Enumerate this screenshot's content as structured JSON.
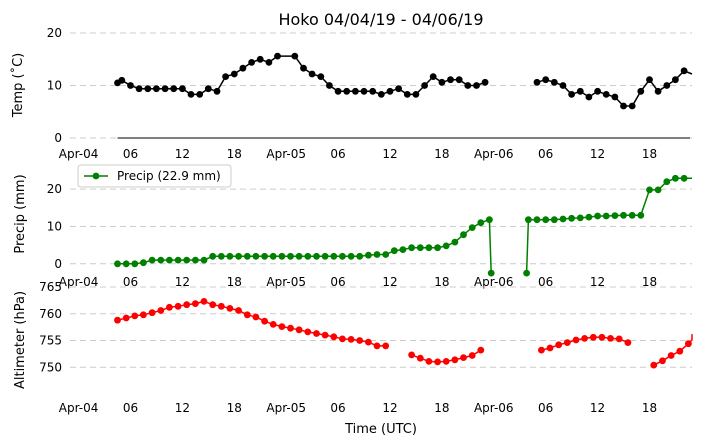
{
  "chart_data": {
    "type": "line",
    "title": "Hoko 04/04/19 - 04/06/19",
    "xlabel": "Time (UTC)",
    "x_ticks": [
      "Apr-04",
      "06",
      "12",
      "18",
      "Apr-05",
      "06",
      "12",
      "18",
      "Apr-06",
      "06",
      "12",
      "18"
    ],
    "panels": [
      {
        "name": "temp",
        "ylabel": "Temp (˚C)",
        "ylim": [
          0,
          20
        ],
        "yticks": [
          "0",
          "10",
          "20"
        ],
        "color": "#000000",
        "axis_line": true,
        "values": [
          [
            4.5,
            10.5
          ],
          [
            5,
            11
          ],
          [
            6,
            10
          ],
          [
            7,
            9.4
          ],
          [
            8,
            9.4
          ],
          [
            9,
            9.4
          ],
          [
            10,
            9.4
          ],
          [
            11,
            9.4
          ],
          [
            12,
            9.4
          ],
          [
            13,
            8.3
          ],
          [
            14,
            8.3
          ],
          [
            15,
            9.4
          ],
          [
            16,
            8.9
          ],
          [
            17,
            11.7
          ],
          [
            18,
            12.2
          ],
          [
            19,
            13.3
          ],
          [
            20,
            14.4
          ],
          [
            21,
            15
          ],
          [
            22,
            14.4
          ],
          [
            23,
            15.6
          ],
          [
            25,
            15.6
          ],
          [
            26,
            13.3
          ],
          [
            27,
            12.2
          ],
          [
            28,
            11.7
          ],
          [
            29,
            10
          ],
          [
            30,
            8.9
          ],
          [
            31,
            8.9
          ],
          [
            32,
            8.9
          ],
          [
            33,
            8.9
          ],
          [
            34,
            8.9
          ],
          [
            35,
            8.3
          ],
          [
            36,
            8.9
          ],
          [
            37,
            9.4
          ],
          [
            38,
            8.3
          ],
          [
            39,
            8.3
          ],
          [
            40,
            10
          ],
          [
            41,
            11.7
          ],
          [
            42,
            10.6
          ],
          [
            43,
            11.1
          ],
          [
            44,
            11.1
          ],
          [
            45,
            10
          ],
          [
            46,
            10
          ],
          [
            47,
            10.6
          ],
          null,
          [
            53,
            10.6
          ],
          [
            54,
            11.1
          ],
          [
            55,
            10.6
          ],
          [
            56,
            10
          ],
          [
            57,
            8.3
          ],
          [
            58,
            8.9
          ],
          [
            59,
            7.8
          ],
          [
            60,
            8.9
          ],
          [
            61,
            8.3
          ],
          [
            62,
            7.8
          ],
          [
            63,
            6.1
          ],
          [
            64,
            6.1
          ],
          [
            65,
            8.9
          ],
          [
            66,
            11.1
          ],
          [
            67,
            8.9
          ],
          [
            68,
            10
          ],
          [
            69,
            11.1
          ],
          [
            70,
            12.8
          ],
          [
            71,
            12.2
          ]
        ]
      },
      {
        "name": "precip",
        "ylabel": "Precip (mm)",
        "ylim": [
          -3,
          27
        ],
        "yticks": [
          "0",
          "10",
          "20"
        ],
        "color": "#008000",
        "legend": "Precip (22.9 mm)",
        "legend_loc": "upper-left",
        "values": [
          [
            4.5,
            0
          ],
          [
            5.5,
            0
          ],
          [
            6.5,
            0
          ],
          [
            7.5,
            0.3
          ],
          [
            8.5,
            1
          ],
          [
            9.5,
            1
          ],
          [
            10.5,
            1
          ],
          [
            11.5,
            1
          ],
          [
            12.5,
            1
          ],
          [
            13.5,
            1
          ],
          [
            14.5,
            1
          ],
          [
            15.5,
            2
          ],
          [
            16.5,
            2
          ],
          [
            17.5,
            2
          ],
          [
            18.5,
            2
          ],
          [
            19.5,
            2
          ],
          [
            20.5,
            2
          ],
          [
            21.5,
            2
          ],
          [
            22.5,
            2
          ],
          [
            23.5,
            2
          ],
          [
            24.5,
            2
          ],
          [
            25.5,
            2
          ],
          [
            26.5,
            2
          ],
          [
            27.5,
            2
          ],
          [
            28.5,
            2
          ],
          [
            29.5,
            2
          ],
          [
            30.5,
            2
          ],
          [
            31.5,
            2
          ],
          [
            32.5,
            2
          ],
          [
            33.5,
            2.3
          ],
          [
            34.5,
            2.5
          ],
          [
            35.5,
            2.5
          ],
          [
            36.5,
            3.5
          ],
          [
            37.5,
            3.8
          ],
          [
            38.5,
            4.3
          ],
          [
            39.5,
            4.3
          ],
          [
            40.5,
            4.3
          ],
          [
            41.5,
            4.3
          ],
          [
            42.5,
            4.8
          ],
          [
            43.5,
            5.8
          ],
          [
            44.5,
            7.8
          ],
          [
            45.5,
            9.7
          ],
          [
            46.5,
            11
          ],
          [
            47.5,
            11.8
          ],
          [
            47.7,
            -2.5
          ],
          null,
          [
            51.8,
            -2.5
          ],
          [
            52,
            11.8
          ],
          [
            53,
            11.8
          ],
          [
            54,
            11.8
          ],
          [
            55,
            11.8
          ],
          [
            56,
            12
          ],
          [
            57,
            12.2
          ],
          [
            58,
            12.3
          ],
          [
            59,
            12.5
          ],
          [
            60,
            12.8
          ],
          [
            61,
            12.8
          ],
          [
            62,
            12.9
          ],
          [
            63,
            13
          ],
          [
            64,
            13
          ],
          [
            65,
            13
          ],
          [
            66,
            19.8
          ],
          [
            67,
            19.8
          ],
          [
            68,
            22
          ],
          [
            69,
            22.9
          ],
          [
            70,
            22.9
          ],
          [
            71,
            22.9
          ],
          [
            72,
            22.9
          ]
        ]
      },
      {
        "name": "altimeter",
        "ylabel": "Altimeter (hPa)",
        "ylim": [
          745,
          765
        ],
        "yticks": [
          "750",
          "755",
          "760",
          "765"
        ],
        "color": "#ff0000",
        "values": [
          [
            4.5,
            758.8
          ],
          [
            5.5,
            759.2
          ],
          [
            6.5,
            759.6
          ],
          [
            7.5,
            759.8
          ],
          [
            8.5,
            760.2
          ],
          [
            9.5,
            760.6
          ],
          [
            10.5,
            761.2
          ],
          [
            11.5,
            761.4
          ],
          [
            12.5,
            761.7
          ],
          [
            13.5,
            761.9
          ],
          [
            14.5,
            762.3
          ],
          [
            15.5,
            761.7
          ],
          [
            16.5,
            761.4
          ],
          [
            17.5,
            761
          ],
          [
            18.5,
            760.6
          ],
          [
            19.5,
            759.8
          ],
          [
            20.5,
            759.4
          ],
          [
            21.5,
            758.6
          ],
          [
            22.5,
            758
          ],
          [
            23.5,
            757.6
          ],
          [
            24.5,
            757.3
          ],
          [
            25.5,
            757
          ],
          [
            26.5,
            756.6
          ],
          [
            27.5,
            756.3
          ],
          [
            28.5,
            756
          ],
          [
            29.5,
            755.7
          ],
          [
            30.5,
            755.3
          ],
          [
            31.5,
            755.2
          ],
          [
            32.5,
            755
          ],
          [
            33.5,
            754.7
          ],
          [
            34.5,
            754
          ],
          [
            35.5,
            754
          ],
          null,
          [
            38.5,
            752.3
          ],
          [
            39.5,
            751.7
          ],
          [
            40.5,
            751.1
          ],
          [
            41.5,
            751
          ],
          [
            42.5,
            751.1
          ],
          [
            43.5,
            751.4
          ],
          [
            44.5,
            751.8
          ],
          [
            45.5,
            752.2
          ],
          [
            46.5,
            753.2
          ],
          null,
          [
            53.5,
            753.2
          ],
          [
            54.5,
            753.6
          ],
          [
            55.5,
            754.2
          ],
          [
            56.5,
            754.6
          ],
          [
            57.5,
            755.1
          ],
          [
            58.5,
            755.4
          ],
          [
            59.5,
            755.6
          ],
          [
            60.5,
            755.6
          ],
          [
            61.5,
            755.4
          ],
          [
            62.5,
            755.3
          ],
          [
            63.5,
            754.6
          ],
          null,
          [
            66.5,
            750.4
          ],
          [
            67.5,
            751.2
          ],
          [
            68.5,
            752.2
          ],
          [
            69.5,
            753
          ],
          [
            70.5,
            754.4
          ],
          [
            71.5,
            755.1
          ],
          [
            72.5,
            756.2
          ]
        ]
      }
    ]
  }
}
